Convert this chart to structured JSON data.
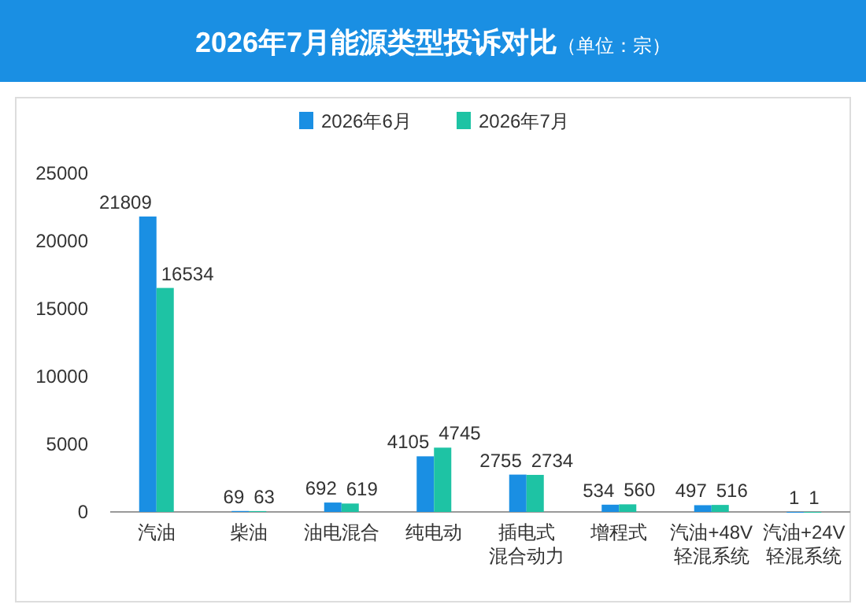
{
  "chart_data": {
    "type": "bar",
    "title": "2026年7月能源类型投诉对比",
    "subtitle": "（单位：宗）",
    "categories": [
      "汽油",
      "柴油",
      "油电混合",
      "纯电动",
      "插电式混合动力",
      "增程式",
      "汽油+48V轻混系统",
      "汽油+24V轻混系统"
    ],
    "series": [
      {
        "name": "2026年6月",
        "color": "#1a8fe3",
        "values": [
          21809,
          69,
          692,
          4105,
          2755,
          534,
          497,
          1
        ]
      },
      {
        "name": "2026年7月",
        "color": "#1ec3a4",
        "values": [
          16534,
          63,
          619,
          4745,
          2734,
          560,
          516,
          1
        ]
      }
    ],
    "ylim": [
      0,
      25000
    ],
    "yticks": [
      0,
      5000,
      10000,
      15000,
      20000,
      25000
    ],
    "grid": false,
    "legend": "top",
    "data_labels": true
  }
}
